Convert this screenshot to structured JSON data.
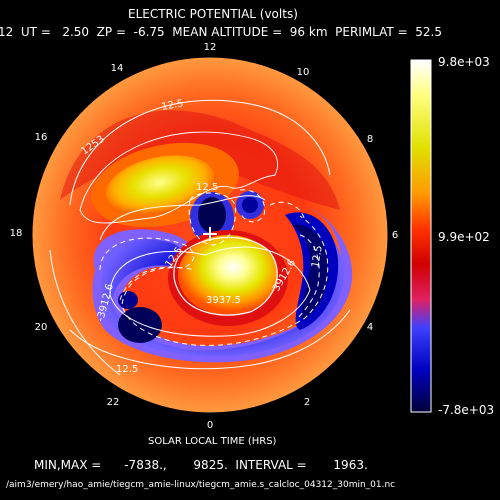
{
  "header": {
    "title": "ELECTRIC POTENTIAL (volts)",
    "subtitle": "12  UT =   2.50  ZP =  -6.75  MEAN ALTITUDE =  96 km  PERIMLAT =  52.5"
  },
  "plot": {
    "clock_labels": {
      "h0": "0",
      "h2": "2",
      "h4": "4",
      "h6": "6",
      "h8": "8",
      "h10": "10",
      "h12": "12",
      "h14": "14",
      "h16": "16",
      "h18": "18",
      "h20": "20",
      "h22": "22"
    },
    "contour_labels": {
      "a": "12.5",
      "b": "1253",
      "c": "12.5",
      "d": "12.5",
      "e": "3912.6",
      "f": "3937.5",
      "g": "3912.6",
      "h": "-3912.6",
      "i": "12.5",
      "j": "12.5"
    },
    "xlabel": "SOLAR LOCAL TIME (HRS)"
  },
  "colorbar": {
    "max_label": "9.8e+03",
    "mid_label": "9.9e+02",
    "min_label": "-7.8e+03",
    "stops": [
      "#ffffff",
      "#ffff66",
      "#e0e000",
      "#ff9900",
      "#ff3300",
      "#e60000",
      "#c00000",
      "#4040ff",
      "#0000d0",
      "#000050"
    ]
  },
  "stats": {
    "line": "MIN,MAX =      -7838.,       9825.  INTERVAL =       1963."
  },
  "footer": {
    "path": "/aim3/emery/hao_amie/tiegcm_amie-linux/tiegcm_amie.s_calcloc_04312_30min_01.nc"
  }
}
